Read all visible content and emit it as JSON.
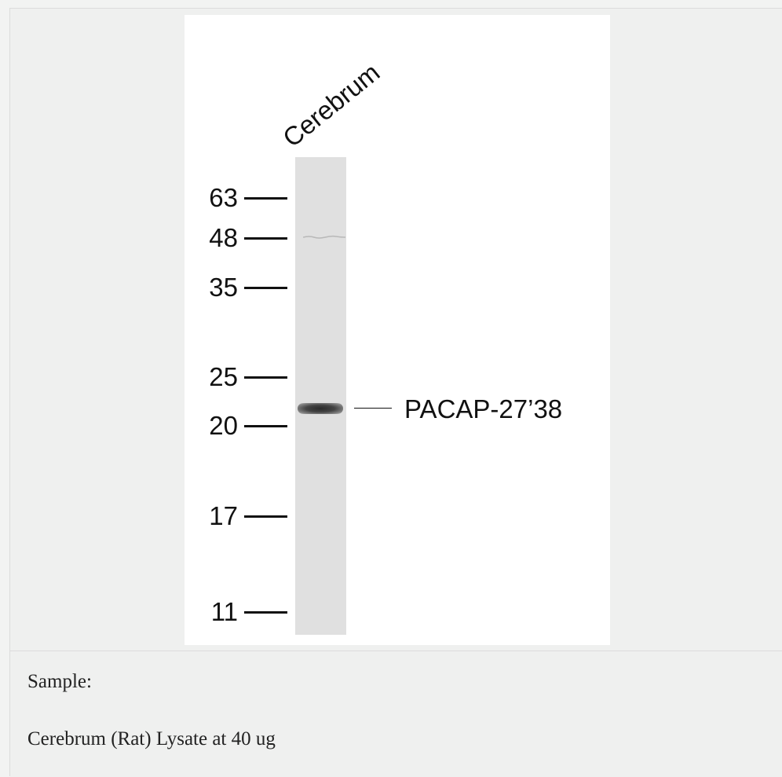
{
  "figure": {
    "lane_label": "Cerebrum",
    "markers": [
      "63",
      "48",
      "35",
      "25",
      "20",
      "17",
      "11"
    ],
    "band_label": "PACAP-27’38"
  },
  "caption": {
    "sample_label": "Sample:",
    "sample_description": "Cerebrum (Rat) Lysate at 40 ug"
  }
}
